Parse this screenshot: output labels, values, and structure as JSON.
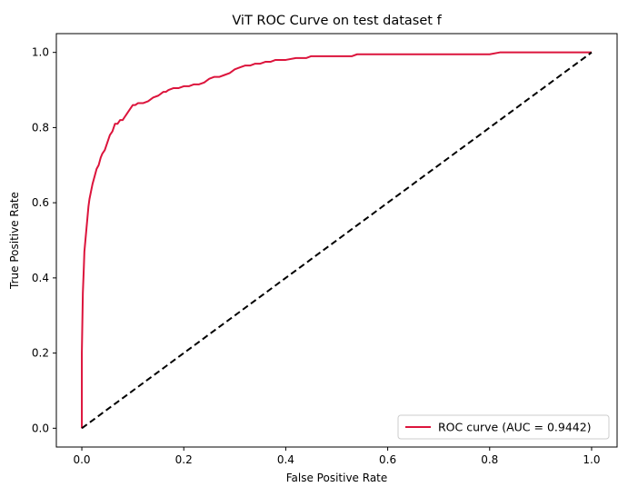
{
  "chart_data": {
    "type": "line",
    "title": "ViT ROC Curve on test dataset f",
    "xlabel": "False Positive Rate",
    "ylabel": "True Positive Rate",
    "xlim": [
      -0.05,
      1.05
    ],
    "ylim": [
      -0.05,
      1.05
    ],
    "xticks": [
      0.0,
      0.2,
      0.4,
      0.6,
      0.8,
      1.0
    ],
    "xtick_labels": [
      "0.0",
      "0.2",
      "0.4",
      "0.6",
      "0.8",
      "1.0"
    ],
    "yticks": [
      0.0,
      0.2,
      0.4,
      0.6,
      0.8,
      1.0
    ],
    "ytick_labels": [
      "0.0",
      "0.2",
      "0.4",
      "0.6",
      "0.8",
      "1.0"
    ],
    "grid": false,
    "legend_position": "lower-right",
    "series": [
      {
        "name": "ROC curve (AUC = 0.9442)",
        "color": "#dc143c",
        "style": "solid",
        "x": [
          0.0,
          0.0,
          0.002,
          0.004,
          0.005,
          0.007,
          0.009,
          0.011,
          0.013,
          0.015,
          0.018,
          0.021,
          0.025,
          0.029,
          0.033,
          0.037,
          0.04,
          0.045,
          0.05,
          0.055,
          0.06,
          0.065,
          0.07,
          0.075,
          0.08,
          0.085,
          0.09,
          0.095,
          0.1,
          0.105,
          0.11,
          0.12,
          0.13,
          0.14,
          0.15,
          0.155,
          0.16,
          0.165,
          0.17,
          0.18,
          0.19,
          0.2,
          0.21,
          0.22,
          0.23,
          0.24,
          0.25,
          0.26,
          0.27,
          0.28,
          0.29,
          0.3,
          0.31,
          0.32,
          0.33,
          0.34,
          0.35,
          0.36,
          0.37,
          0.38,
          0.39,
          0.4,
          0.42,
          0.44,
          0.45,
          0.48,
          0.5,
          0.53,
          0.54,
          0.6,
          0.7,
          0.8,
          0.82,
          0.83,
          0.9,
          1.0
        ],
        "y": [
          0.0,
          0.2,
          0.36,
          0.43,
          0.47,
          0.5,
          0.53,
          0.56,
          0.59,
          0.61,
          0.63,
          0.65,
          0.67,
          0.69,
          0.7,
          0.72,
          0.73,
          0.74,
          0.76,
          0.78,
          0.79,
          0.81,
          0.81,
          0.82,
          0.82,
          0.83,
          0.84,
          0.85,
          0.86,
          0.86,
          0.865,
          0.865,
          0.87,
          0.88,
          0.885,
          0.89,
          0.895,
          0.895,
          0.9,
          0.905,
          0.905,
          0.91,
          0.91,
          0.915,
          0.915,
          0.92,
          0.93,
          0.935,
          0.935,
          0.94,
          0.945,
          0.955,
          0.96,
          0.965,
          0.965,
          0.97,
          0.97,
          0.975,
          0.975,
          0.98,
          0.98,
          0.98,
          0.985,
          0.985,
          0.99,
          0.99,
          0.99,
          0.99,
          0.995,
          0.995,
          0.995,
          0.995,
          1.0,
          1.0,
          1.0,
          1.0
        ]
      },
      {
        "name": "",
        "color": "#000000",
        "style": "dashed",
        "x": [
          0.0,
          1.0
        ],
        "y": [
          0.0,
          1.0
        ]
      }
    ]
  }
}
